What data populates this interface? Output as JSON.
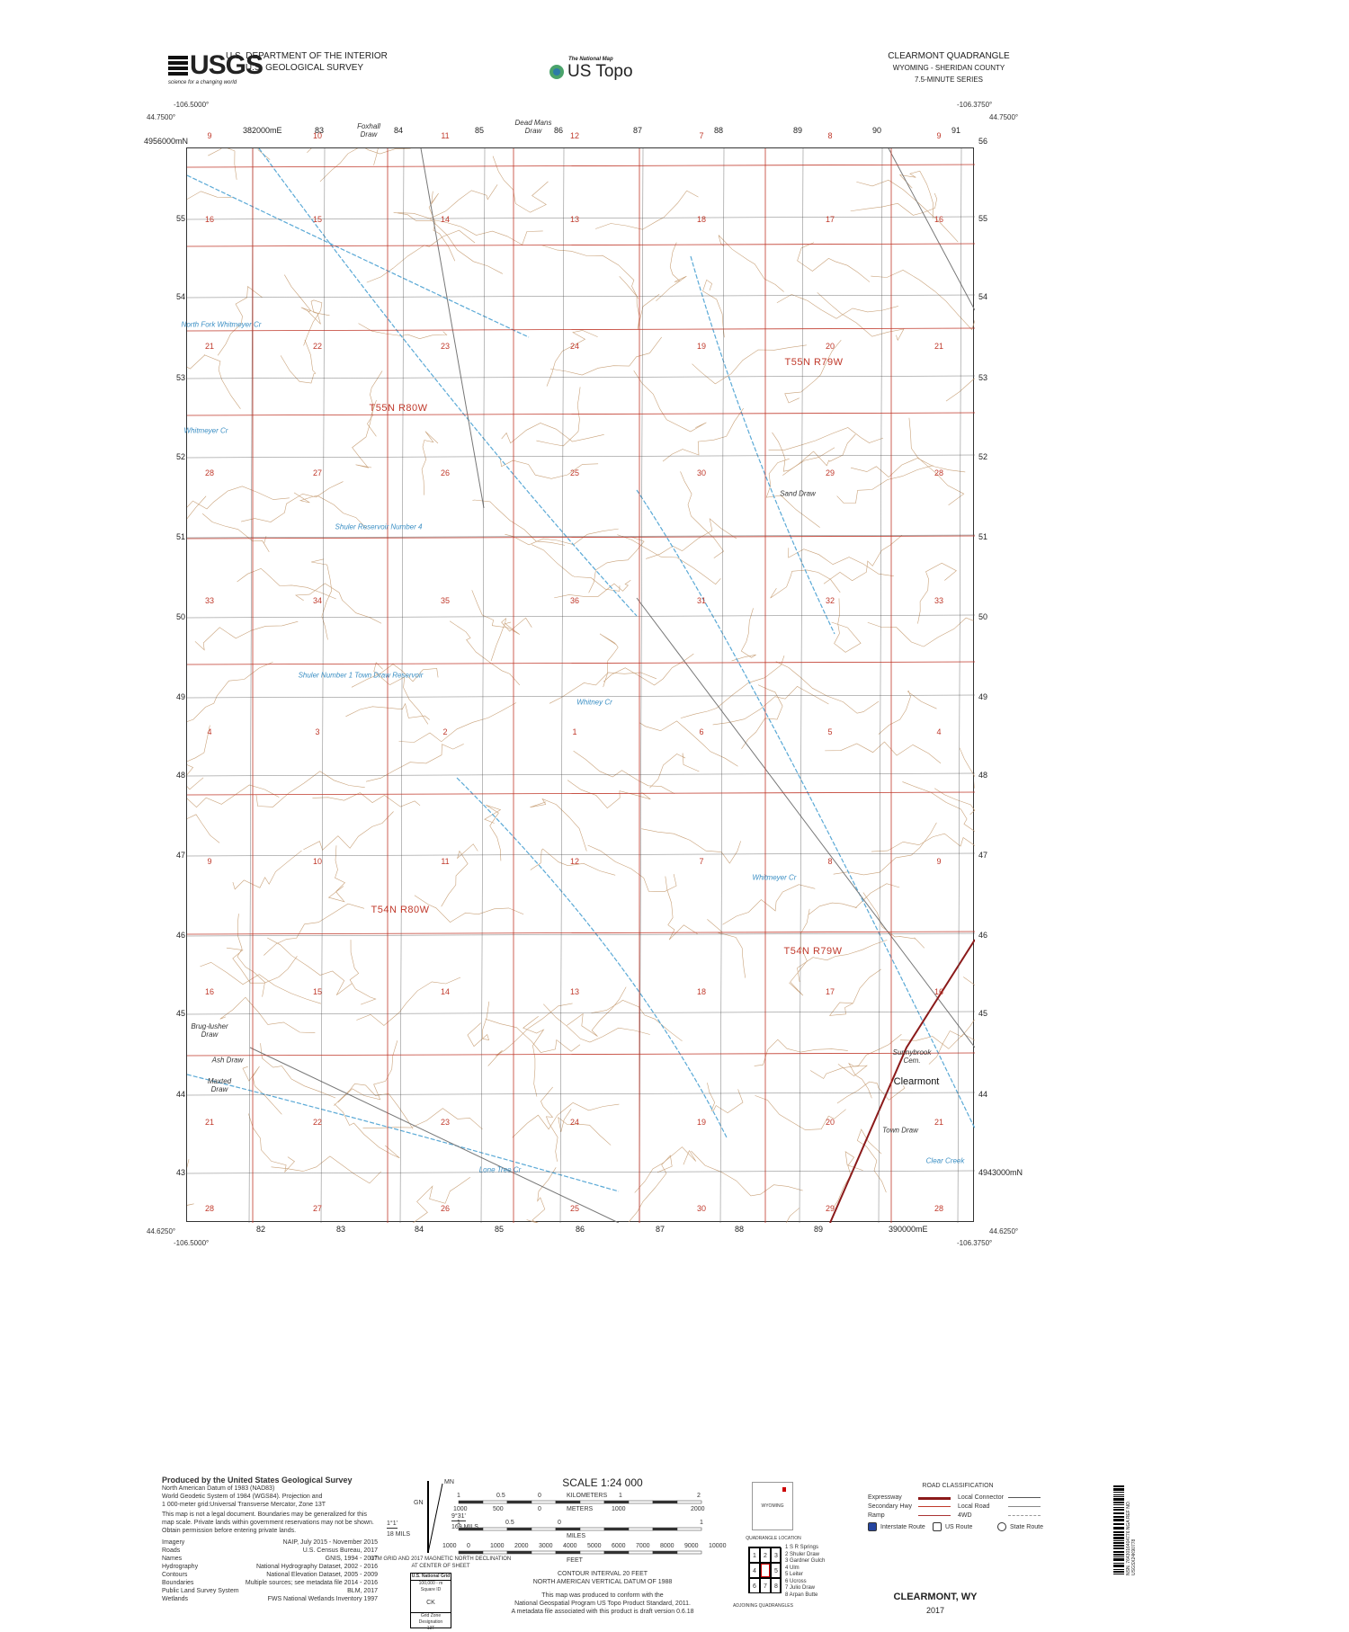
{
  "header": {
    "agency_logo": "USGS",
    "agency_tagline": "science for a changing world",
    "dept": "U.S. DEPARTMENT OF THE INTERIOR",
    "survey": "U.S. GEOLOGICAL SURVEY",
    "national_map": "The National Map",
    "product": "US Topo",
    "quad_title": "CLEARMONT QUADRANGLE",
    "state_county": "WYOMING - SHERIDAN COUNTY",
    "series": "7.5-MINUTE SERIES"
  },
  "corners": {
    "top_left_lon": "-106.5000°",
    "top_left_lat": "44.7500°",
    "top_right_lon": "-106.3750°",
    "top_right_lat": "44.7500°",
    "bottom_left_lon": "-106.5000°",
    "bottom_left_lat": "44.6250°",
    "bottom_right_lon": "-106.3750°",
    "bottom_right_lat": "44.6250°"
  },
  "eastings_top": [
    "382000mE",
    "83",
    "84",
    "85",
    "86",
    "87",
    "88",
    "89",
    "90",
    "91"
  ],
  "eastings_bottom": [
    "82",
    "83",
    "84",
    "85",
    "86",
    "87",
    "88",
    "89",
    "390000mE"
  ],
  "northings_left": [
    "4956000mN",
    "55",
    "54",
    "53",
    "52",
    "51",
    "50",
    "49",
    "48",
    "47",
    "46",
    "45",
    "44",
    "43"
  ],
  "northings_right": [
    "56",
    "55",
    "54",
    "53",
    "52",
    "51",
    "50",
    "49",
    "48",
    "47",
    "46",
    "45",
    "44",
    "4943000mN"
  ],
  "colors": {
    "plss": "#c0392b",
    "grid": "#555555",
    "contour": "#c9a27a",
    "water": "#5aa9d6",
    "road": "#777777"
  },
  "sections": [
    "9",
    "10",
    "11",
    "12",
    "7",
    "8",
    "9",
    "16",
    "15",
    "14",
    "13",
    "18",
    "17",
    "16",
    "21",
    "22",
    "23",
    "24",
    "19",
    "20",
    "21",
    "28",
    "27",
    "26",
    "25",
    "30",
    "29",
    "28",
    "33",
    "34",
    "35",
    "36",
    "31",
    "32",
    "33",
    "4",
    "3",
    "2",
    "1",
    "6",
    "5",
    "4",
    "9",
    "10",
    "11",
    "12",
    "7",
    "8",
    "9",
    "16",
    "15",
    "14",
    "13",
    "18",
    "17",
    "16",
    "21",
    "22",
    "23",
    "24",
    "19",
    "20",
    "21",
    "28",
    "27",
    "26",
    "25",
    "30",
    "29",
    "28"
  ],
  "townships": [
    "T55N R80W",
    "T55N R79W",
    "T54N R80W",
    "T54N R79W"
  ],
  "places": [
    "Foxhall Draw",
    "Dead Mans Draw",
    "Sand Draw",
    "Brug-lusher Draw",
    "Ash Draw",
    "Maxted Draw",
    "Sunnybrook Cem.",
    "Town Draw"
  ],
  "water": [
    "Whitmeyer Cr",
    "Shuler Reservoir Number 4",
    "Shuler Number 1 Town Draw Reservoir",
    "Whitney Cr",
    "Whitmeyer Cr",
    "Lone Tree Cr",
    "Clear Creek",
    "North Fork Whitmeyer Cr"
  ],
  "town": "Clearmont",
  "footer": {
    "produced_by": "Produced by the United States Geological Survey",
    "datum": [
      "North American Datum of 1983 (NAD83)",
      "World Geodetic System of 1984 (WGS84). Projection and",
      "1 000-meter grid:Universal Transverse Mercator, Zone 13T"
    ],
    "disclaimer": "This map is not a legal document. Boundaries may be generalized for this map scale. Private lands within government reservations may not be shown. Obtain permission before entering private lands.",
    "credits": [
      [
        "Imagery",
        "NAIP, July 2015 - November 2015"
      ],
      [
        "Roads",
        "U.S. Census Bureau, 2017"
      ],
      [
        "Names",
        "GNIS, 1994 - 2017"
      ],
      [
        "Hydrography",
        "National Hydrography Dataset, 2002 - 2016"
      ],
      [
        "Contours",
        "National Elevation Dataset, 2005 - 2009"
      ],
      [
        "Boundaries",
        "Multiple sources; see metadata file 2014 - 2016"
      ],
      [
        "Public Land Survey System",
        "BLM, 2017"
      ],
      [
        "Wetlands",
        "FWS National Wetlands Inventory 1997"
      ]
    ],
    "declination": {
      "mn": "MN",
      "gn": "GN",
      "gn_angle": "1°1'",
      "gn_mils": "18 MILS",
      "mn_angle": "9°31'",
      "mn_mils": "169 MILS",
      "caption": "UTM GRID AND 2017 MAGNETIC NORTH DECLINATION AT CENTER OF SHEET"
    },
    "usng": {
      "title": "U.S. National Grid",
      "sub": "100,000 - m Square ID",
      "id": "CK",
      "gzd_label": "Grid Zone Designation",
      "gzd": "13T"
    },
    "scale": {
      "title": "SCALE 1:24 000",
      "km_label": "KILOMETERS",
      "m_label": "METERS",
      "mi_label": "MILES",
      "ft_label": "FEET",
      "km_ticks": [
        "1",
        "0.5",
        "0",
        "1",
        "2"
      ],
      "m_ticks": [
        "1000",
        "500",
        "0",
        "1000",
        "2000"
      ],
      "mi_ticks": [
        "1",
        "0.5",
        "0",
        "1"
      ],
      "ft_ticks": [
        "1000",
        "0",
        "1000",
        "2000",
        "3000",
        "4000",
        "5000",
        "6000",
        "7000",
        "8000",
        "9000",
        "10000"
      ]
    },
    "contour": [
      "CONTOUR INTERVAL 20 FEET",
      "NORTH AMERICAN VERTICAL DATUM OF 1988"
    ],
    "conform": [
      "This map was produced to conform with the",
      "National Geospatial Program US Topo Product Standard, 2011.",
      "A metadata file associated with this product is draft version 0.6.18"
    ],
    "quad_location": {
      "state": "WYOMING",
      "caption": "QUADRANGLE LOCATION"
    },
    "adjoining": {
      "caption": "ADJOINING QUADRANGLES",
      "cells": [
        "1",
        "2",
        "3",
        "4",
        "",
        "5",
        "6",
        "7",
        "8"
      ],
      "names": [
        "1 S R Springs",
        "2 Shuler Draw",
        "3 Gardner Gulch",
        "4 Ulm",
        "5 Leiter",
        "6 Ucross",
        "7 Julio Draw",
        "8 Arpan Butte"
      ]
    },
    "road_class": {
      "title": "ROAD CLASSIFICATION",
      "items": [
        "Expressway",
        "Secondary Hwy",
        "Ramp",
        "Local Connector",
        "Local Road",
        "4WD"
      ],
      "shields": [
        "Interstate Route",
        "US Route",
        "State Route"
      ]
    },
    "name": "CLEARMONT, WY",
    "year": "2017",
    "barcode": "NSN. 7643016404776 NGA REF NO. USGSX24K90778"
  }
}
